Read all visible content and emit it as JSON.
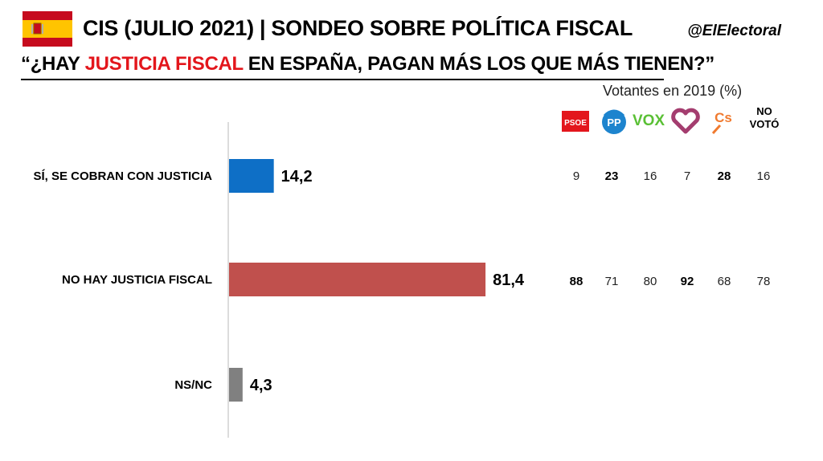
{
  "header": {
    "flag_icon": "spain-flag-icon",
    "title": "CIS (JULIO 2021) | SONDEO SOBRE POLÍTICA FISCAL",
    "handle": "@ElElectoral",
    "question_pre": "“¿HAY ",
    "question_highlight": "JUSTICIA FISCAL",
    "question_post": " EN ESPAÑA, PAGAN MÁS LOS QUE MÁS TIENEN?”",
    "highlight_color": "#e3161c"
  },
  "chart_data": {
    "type": "bar",
    "orientation": "horizontal",
    "categories": [
      "SÍ, SE COBRAN CON JUSTICIA",
      "NO HAY JUSTICIA FISCAL",
      "NS/NC"
    ],
    "values": [
      14.2,
      81.4,
      4.3
    ],
    "value_labels": [
      "14,2",
      "81,4",
      "4,3"
    ],
    "colors": [
      "#0e6fc6",
      "#c0504d",
      "#808080"
    ],
    "grid": false
  },
  "breakdown": {
    "title": "Votantes en 2019 (%)",
    "columns": [
      {
        "icon": "psoe-logo-icon",
        "label": "PSOE"
      },
      {
        "icon": "pp-logo-icon",
        "label": "PP"
      },
      {
        "icon": "vox-logo-icon",
        "label": "VOX"
      },
      {
        "icon": "podemos-heart-icon",
        "label": ""
      },
      {
        "icon": "cs-logo-icon",
        "label": "Cs"
      },
      {
        "icon": "",
        "label": "NO VOTÓ"
      }
    ],
    "rows": [
      {
        "values": [
          "9",
          "23",
          "16",
          "7",
          "28",
          "16"
        ],
        "bold": [
          false,
          true,
          false,
          false,
          true,
          false
        ]
      },
      {
        "values": [
          "88",
          "71",
          "80",
          "92",
          "68",
          "78"
        ],
        "bold": [
          true,
          false,
          false,
          true,
          false,
          false
        ]
      }
    ]
  }
}
